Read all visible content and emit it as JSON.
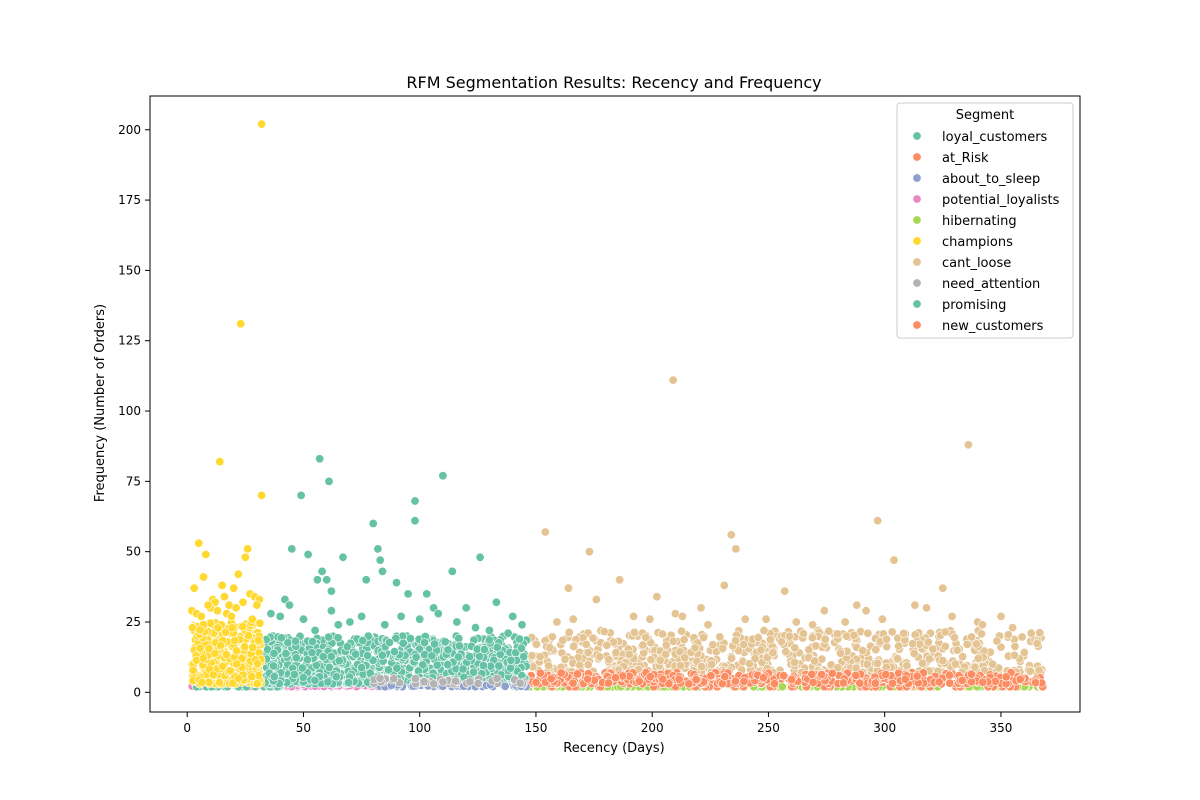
{
  "chart_data": {
    "type": "scatter",
    "title": "RFM Segmentation Results: Recency and Frequency",
    "xlabel": "Recency (Days)",
    "ylabel": "Frequency (Number of Orders)",
    "xlim": [
      -16,
      384
    ],
    "ylim": [
      -7,
      212
    ],
    "x_ticks": [
      0,
      50,
      100,
      150,
      200,
      250,
      300,
      350
    ],
    "y_ticks": [
      0,
      25,
      50,
      75,
      100,
      125,
      150,
      175,
      200
    ],
    "grid": false,
    "legend": {
      "title": "Segment",
      "position": "top-right"
    },
    "marker": "circle",
    "series": [
      {
        "name": "loyal_customers",
        "color": "#66c2a5",
        "region": {
          "x": [
            33,
            146
          ],
          "y": [
            3,
            20
          ]
        },
        "x": [
          49,
          57,
          61,
          110,
          98,
          98,
          80,
          82,
          83,
          84,
          52,
          45,
          42,
          44,
          50,
          56,
          58,
          60,
          62,
          67,
          77,
          90,
          95,
          103,
          106,
          114,
          120,
          126,
          133,
          140,
          62,
          70,
          36,
          40,
          55,
          65,
          75,
          85,
          92,
          100,
          108,
          116,
          124,
          130,
          138,
          144
        ],
        "y": [
          70,
          83,
          75,
          77,
          68,
          61,
          60,
          51,
          47,
          43,
          49,
          51,
          33,
          31,
          26,
          40,
          43,
          40,
          36,
          48,
          40,
          39,
          35,
          35,
          30,
          43,
          30,
          48,
          32,
          27,
          29,
          25,
          28,
          27,
          22,
          24,
          27,
          24,
          27,
          26,
          28,
          25,
          23,
          22,
          21,
          24
        ]
      },
      {
        "name": "at_Risk",
        "color": "#fc8d62",
        "region": {
          "x": [
            147,
            368
          ],
          "y": [
            3,
            7
          ]
        },
        "x": [],
        "y": []
      },
      {
        "name": "about_to_sleep",
        "color": "#8da0cb",
        "region": {
          "x": [
            80,
            146
          ],
          "y": [
            2,
            3
          ]
        },
        "x": [],
        "y": []
      },
      {
        "name": "potential_loyalists",
        "color": "#e78ac3",
        "region": {
          "x": [
            2,
            80
          ],
          "y": [
            2,
            3
          ]
        },
        "x": [],
        "y": []
      },
      {
        "name": "hibernating",
        "color": "#a6d854",
        "region": {
          "x": [
            147,
            368
          ],
          "y": [
            2,
            2
          ]
        },
        "x": [],
        "y": []
      },
      {
        "name": "champions",
        "color": "#ffd92f",
        "region": {
          "x": [
            2,
            32
          ],
          "y": [
            3,
            25
          ]
        },
        "x": [
          32,
          23,
          14,
          32,
          5,
          8,
          7,
          26,
          25,
          22,
          3,
          20,
          15,
          11,
          16,
          12,
          27,
          29,
          31,
          24,
          18,
          10,
          2,
          4,
          6,
          9,
          13,
          17,
          19,
          21,
          28,
          30
        ],
        "y": [
          202,
          131,
          82,
          70,
          53,
          49,
          41,
          51,
          48,
          42,
          37,
          37,
          38,
          33,
          34,
          32,
          35,
          34,
          33,
          32,
          31,
          30,
          29,
          28,
          27,
          31,
          29,
          28,
          27,
          30,
          26,
          31
        ]
      },
      {
        "name": "cant_loose",
        "color": "#e5c494",
        "region": {
          "x": [
            147,
            368
          ],
          "y": [
            7,
            22
          ]
        },
        "x": [
          209,
          336,
          297,
          154,
          173,
          304,
          234,
          236,
          186,
          164,
          231,
          202,
          210,
          221,
          257,
          274,
          288,
          292,
          313,
          318,
          325,
          350,
          363,
          159,
          166,
          176,
          192,
          199,
          213,
          224,
          240,
          249,
          262,
          269,
          283,
          299,
          329,
          340,
          342,
          355
        ],
        "y": [
          111,
          88,
          61,
          57,
          50,
          47,
          56,
          51,
          40,
          37,
          38,
          34,
          28,
          30,
          36,
          29,
          31,
          29,
          31,
          30,
          37,
          27,
          21,
          25,
          26,
          33,
          27,
          26,
          27,
          24,
          26,
          26,
          25,
          24,
          25,
          26,
          27,
          25,
          24,
          23
        ]
      },
      {
        "name": "need_attention",
        "color": "#b3b3b3",
        "region": {
          "x": [
            80,
            146
          ],
          "y": [
            3,
            5
          ]
        },
        "x": [],
        "y": []
      },
      {
        "name": "promising",
        "color": "#66c2a5",
        "region": {
          "x": [
            2,
            40
          ],
          "y": [
            2,
            2
          ]
        },
        "x": [],
        "y": []
      },
      {
        "name": "new_customers",
        "color": "#fc8d62",
        "region": {
          "x": [
            150,
            368
          ],
          "y": [
            2,
            2
          ]
        },
        "x": [],
        "y": []
      }
    ]
  }
}
